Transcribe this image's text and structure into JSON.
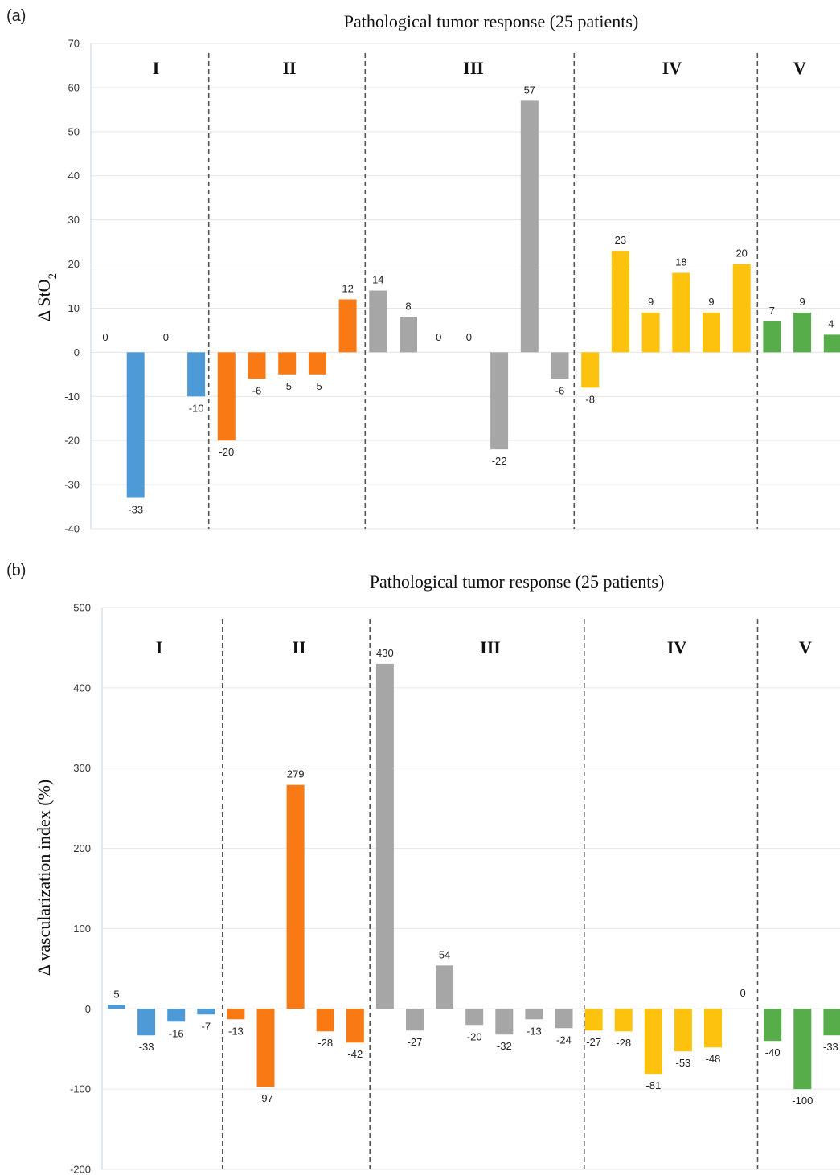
{
  "chart_data": [
    {
      "panel": "(a)",
      "type": "bar",
      "title": "Pathological tumor  response (25 patients)",
      "ylabel_main": "Δ StO",
      "ylabel_sub": "2",
      "ylim": [
        -40,
        70
      ],
      "yticks": [
        -40,
        -30,
        -20,
        -10,
        0,
        10,
        20,
        30,
        40,
        50,
        60,
        70
      ],
      "grid": true,
      "groups": [
        {
          "name": "I",
          "color": "#4e9ad6",
          "values": [
            0,
            -33,
            0,
            -10
          ]
        },
        {
          "name": "II",
          "color": "#f97a14",
          "values": [
            -20,
            -6,
            -5,
            -5,
            12
          ]
        },
        {
          "name": "III",
          "color": "#a6a6a6",
          "values": [
            14,
            8,
            0,
            0,
            -22,
            57,
            -6
          ]
        },
        {
          "name": "IV",
          "color": "#fcc20e",
          "values": [
            -8,
            23,
            9,
            18,
            9,
            20
          ]
        },
        {
          "name": "V",
          "color": "#56ad4a",
          "values": [
            7,
            9,
            4
          ]
        }
      ]
    },
    {
      "panel": "(b)",
      "type": "bar",
      "title": "Pathological tumor response (25 patients)",
      "ylabel_main": "Δ vascularization index (%)",
      "ylabel_sub": "",
      "ylim": [
        -200,
        500
      ],
      "yticks": [
        -200,
        -100,
        0,
        100,
        200,
        300,
        400,
        500
      ],
      "grid": true,
      "groups": [
        {
          "name": "I",
          "color": "#4e9ad6",
          "values": [
            5,
            -33,
            -16,
            -7
          ]
        },
        {
          "name": "II",
          "color": "#f97a14",
          "values": [
            -13,
            -97,
            279,
            -28,
            -42
          ]
        },
        {
          "name": "III",
          "color": "#a6a6a6",
          "values": [
            430,
            -27,
            54,
            -20,
            -32,
            -13,
            -24
          ]
        },
        {
          "name": "IV",
          "color": "#fcc20e",
          "values": [
            -27,
            -28,
            -81,
            -53,
            -48,
            0
          ]
        },
        {
          "name": "V",
          "color": "#56ad4a",
          "values": [
            -40,
            -100,
            -33
          ]
        }
      ]
    }
  ]
}
